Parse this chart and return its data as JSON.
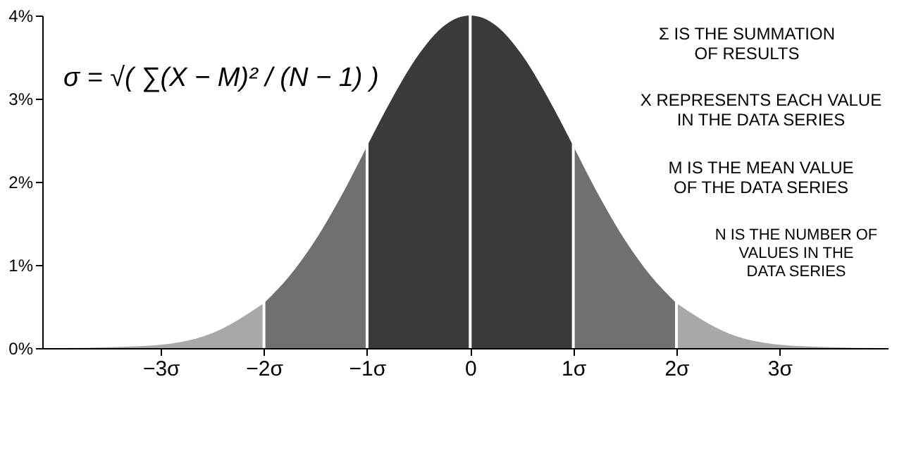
{
  "chart_data": {
    "type": "area",
    "xlim": [
      -4.15,
      4.05
    ],
    "ylim": [
      0,
      4
    ],
    "xticks": [
      {
        "value": -3,
        "label": "−3σ"
      },
      {
        "value": -2,
        "label": "−2σ"
      },
      {
        "value": -1,
        "label": "−1σ"
      },
      0,
      {
        "value": 1,
        "label": "1σ"
      },
      {
        "value": 2,
        "label": "2σ"
      },
      {
        "value": 3,
        "label": "3σ"
      }
    ],
    "yticks": [
      {
        "value": 0,
        "label": "0%"
      },
      {
        "value": 1,
        "label": "1%"
      },
      {
        "value": 2,
        "label": "2%"
      },
      {
        "value": 3,
        "label": "3%"
      },
      {
        "value": 4,
        "label": "4%"
      }
    ],
    "grid": false,
    "series": [
      {
        "color": "#a8a8a8",
        "x": [
          -4.15,
          -4,
          -3.5,
          -3,
          -2.5,
          -2
        ],
        "values": [
          0,
          0,
          0.01,
          0.04,
          0.18,
          0.54
        ]
      },
      {
        "color": "#707070",
        "x": [
          -2,
          -1.75,
          -1.5,
          -1.25,
          -1
        ],
        "values": [
          0.54,
          0.87,
          1.3,
          1.83,
          2.43
        ]
      },
      {
        "color": "#3a3a3a",
        "x": [
          -1,
          -0.75,
          -0.5,
          -0.25,
          0,
          0.25,
          0.5,
          0.75,
          1
        ],
        "values": [
          2.43,
          3.02,
          3.53,
          3.88,
          4,
          3.88,
          3.53,
          3.02,
          2.43
        ]
      },
      {
        "color": "#707070",
        "x": [
          1,
          1.25,
          1.5,
          1.75,
          2
        ],
        "values": [
          2.43,
          1.83,
          1.3,
          0.87,
          0.54
        ]
      },
      {
        "color": "#a8a8a8",
        "x": [
          2,
          2.5,
          3,
          3.5,
          4,
          4.05
        ],
        "values": [
          0.54,
          0.18,
          0.04,
          0.01,
          0,
          0
        ]
      }
    ],
    "ref_lines": [
      {
        "axis": "x",
        "value": -2,
        "color": "#ffffff"
      },
      {
        "axis": "x",
        "value": -1,
        "color": "#ffffff"
      },
      {
        "axis": "x",
        "value": 0,
        "color": "#ffffff"
      },
      {
        "axis": "x",
        "value": 1,
        "color": "#ffffff"
      },
      {
        "axis": "x",
        "value": 2,
        "color": "#ffffff"
      }
    ],
    "annotations": [
      "σ = √( ∑(X − M)² / (N − 1) )",
      "Σ IS THE SUMMATION\nOF RESULTS",
      "X REPRESENTS EACH VALUE\nIN THE DATA SERIES",
      "M IS THE MEAN VALUE\nOF THE DATA SERIES",
      "N IS THE NUMBER OF\nVALUES IN THE\nDATA SERIES"
    ]
  }
}
